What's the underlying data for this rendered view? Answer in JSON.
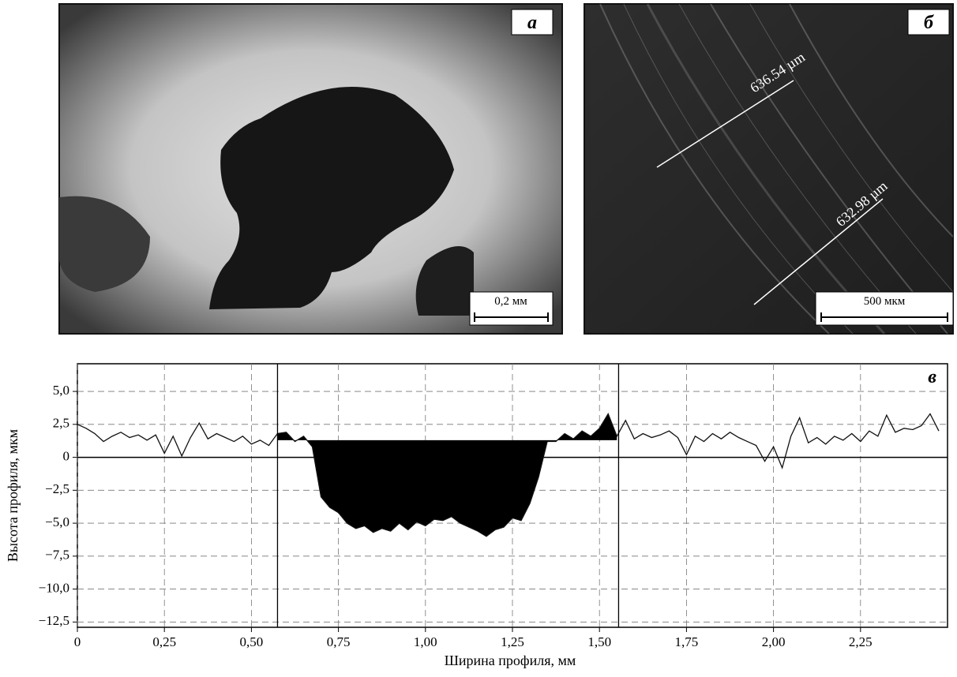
{
  "panels": [
    {
      "label": "а",
      "scale_bar": "0,2 мм"
    },
    {
      "label": "б",
      "scale_bar": "500 мкм",
      "measurements": [
        "636.54 µm",
        "632.98 µm"
      ]
    }
  ],
  "chart_data": {
    "type": "line",
    "label": "в",
    "xlabel": "Ширина профиля, мм",
    "ylabel": "Высота профиля, мкм",
    "x": [
      0,
      0.025,
      0.05,
      0.075,
      0.1,
      0.125,
      0.15,
      0.175,
      0.2,
      0.225,
      0.25,
      0.275,
      0.3,
      0.325,
      0.35,
      0.375,
      0.4,
      0.425,
      0.45,
      0.475,
      0.5,
      0.525,
      0.55,
      0.575,
      0.6,
      0.625,
      0.65,
      0.675,
      0.7,
      0.725,
      0.75,
      0.775,
      0.8,
      0.825,
      0.85,
      0.875,
      0.9,
      0.925,
      0.95,
      0.975,
      1,
      1.025,
      1.05,
      1.075,
      1.1,
      1.125,
      1.15,
      1.175,
      1.2,
      1.225,
      1.25,
      1.275,
      1.3,
      1.325,
      1.35,
      1.375,
      1.4,
      1.425,
      1.45,
      1.475,
      1.5,
      1.525,
      1.55,
      1.575,
      1.6,
      1.625,
      1.65,
      1.675,
      1.7,
      1.725,
      1.75,
      1.775,
      1.8,
      1.825,
      1.85,
      1.875,
      1.9,
      1.925,
      1.95,
      1.975,
      2,
      2.025,
      2.05,
      2.075,
      2.1,
      2.125,
      2.15,
      2.175,
      2.2,
      2.225,
      2.25,
      2.275,
      2.3,
      2.325,
      2.35,
      2.375,
      2.4,
      2.425,
      2.45,
      2.475
    ],
    "series": [
      {
        "color": "#111111",
        "values": [
          2.5,
          2.2,
          1.8,
          1.2,
          1.6,
          1.9,
          1.5,
          1.7,
          1.3,
          1.7,
          0.3,
          1.6,
          0.1,
          1.5,
          2.6,
          1.4,
          1.8,
          1.5,
          1.2,
          1.6,
          1.0,
          1.3,
          0.9,
          1.8,
          1.9,
          1.2,
          1.6,
          0.8,
          -3.0,
          -3.8,
          -4.2,
          -5.0,
          -5.4,
          -5.2,
          -5.7,
          -5.4,
          -5.6,
          -5.0,
          -5.5,
          -4.9,
          -5.2,
          -4.7,
          -4.8,
          -4.5,
          -5.0,
          -5.3,
          -5.6,
          -6.0,
          -5.5,
          -5.3,
          -4.6,
          -4.8,
          -3.5,
          -1.5,
          1.2,
          1.2,
          1.8,
          1.4,
          2.0,
          1.6,
          2.2,
          3.3,
          1.6,
          2.8,
          1.4,
          1.8,
          1.5,
          1.7,
          2.0,
          1.5,
          0.2,
          1.6,
          1.2,
          1.8,
          1.4,
          1.9,
          1.5,
          1.2,
          0.9,
          -0.3,
          0.8,
          -0.8,
          1.6,
          3.0,
          1.1,
          1.5,
          1.0,
          1.6,
          1.3,
          1.8,
          1.2,
          2.0,
          1.6,
          3.2,
          1.9,
          2.2,
          2.1,
          2.4,
          3.3,
          2.0
        ]
      }
    ],
    "markers": [
      0.575,
      1.555
    ],
    "fill_level": 1.3,
    "fill_color": "#000000",
    "xlim": [
      0,
      2.5
    ],
    "ylim": [
      -12.9,
      7.1
    ],
    "xticks": [
      0,
      {
        "value": 0.25,
        "label": "0,25"
      },
      {
        "value": 0.5,
        "label": "0,50"
      },
      {
        "value": 0.75,
        "label": "0,75"
      },
      {
        "value": 1,
        "label": "1,00"
      },
      {
        "value": 1.25,
        "label": "1,25"
      },
      {
        "value": 1.5,
        "label": "1,50"
      },
      {
        "value": 1.75,
        "label": "1,75"
      },
      {
        "value": 2,
        "label": "2,00"
      },
      {
        "value": 2.25,
        "label": "2,25"
      }
    ],
    "yticks": [
      {
        "value": 5,
        "label": "5,0"
      },
      {
        "value": 2.5,
        "label": "2,5"
      },
      0,
      {
        "value": -2.5,
        "label": "−2,5"
      },
      {
        "value": -5,
        "label": "−5,0"
      },
      {
        "value": -7.5,
        "label": "−7,5"
      },
      {
        "value": -10,
        "label": "−10,0"
      },
      {
        "value": -12.5,
        "label": "−12,5"
      }
    ],
    "grid": true,
    "zero_line": true
  }
}
